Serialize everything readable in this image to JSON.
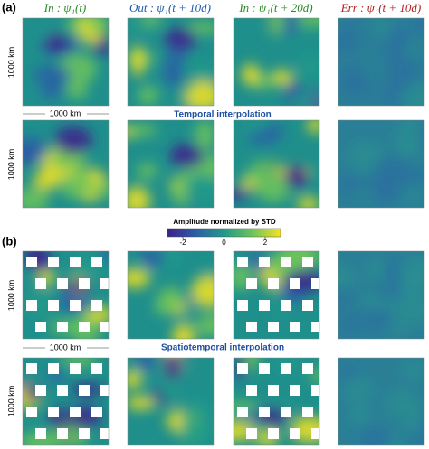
{
  "panel_a": {
    "label": "(a)",
    "column_titles": [
      "In : ψ₁(t)",
      "Out : ψ₁(t + 10d)",
      "In : ψ₁(t + 20d)",
      "Err : ψ₁(t + 10d)"
    ],
    "scale_vertical": [
      "1000 km",
      "1000 km"
    ],
    "scale_horizontal": "1000 km",
    "caption": "Temporal interpolation"
  },
  "colorbar": {
    "title": "Amplitude normalized by STD",
    "range": [
      -2.75,
      2.75
    ],
    "ticks": [
      -2,
      0,
      2
    ]
  },
  "panel_b": {
    "label": "(b)",
    "scale_vertical": [
      "1000 km",
      "1000 km"
    ],
    "scale_horizontal": "1000 km",
    "caption": "Spatiotemporal interpolation"
  }
}
